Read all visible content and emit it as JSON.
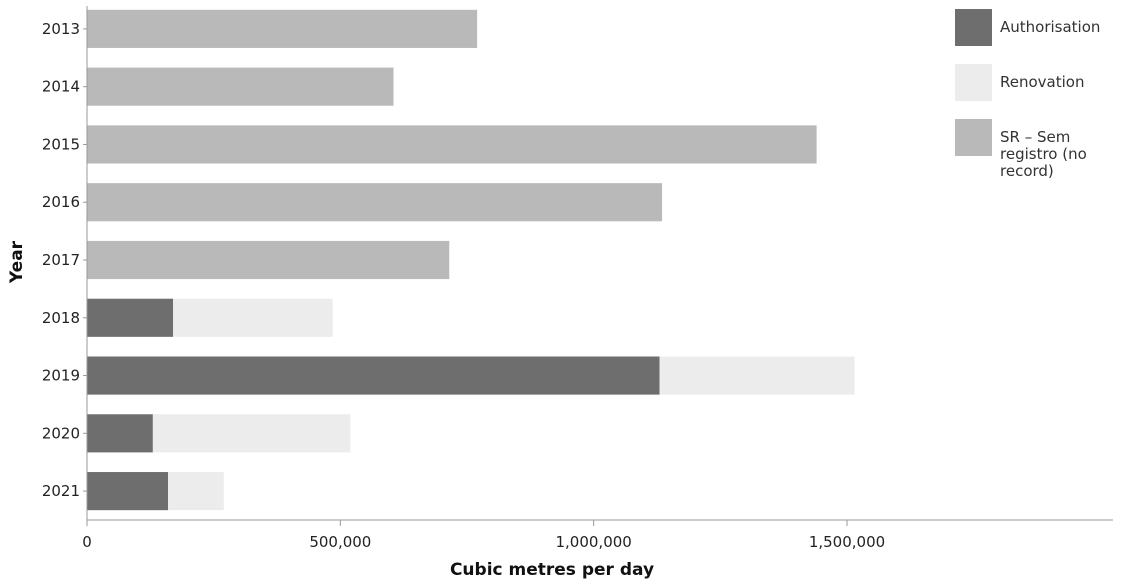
{
  "chart_data": {
    "type": "bar",
    "orientation": "horizontal",
    "stacked": true,
    "categories": [
      "2013",
      "2014",
      "2015",
      "2016",
      "2017",
      "2018",
      "2019",
      "2020",
      "2021"
    ],
    "series": [
      {
        "name": "Authorisation",
        "color": "#6e6e6e",
        "values": [
          0,
          0,
          0,
          0,
          0,
          170000,
          1130000,
          130000,
          160000
        ]
      },
      {
        "name": "Renovation",
        "color": "#ececec",
        "values": [
          0,
          0,
          0,
          0,
          0,
          315000,
          385000,
          390000,
          110000
        ]
      },
      {
        "name": "SR – Sem registro (no record)",
        "color": "#b9b9b9",
        "values": [
          770000,
          605000,
          1440000,
          1135000,
          715000,
          0,
          0,
          0,
          0
        ]
      }
    ],
    "xlabel": "Cubic metres per day",
    "ylabel": "Year",
    "xlim": [
      0,
      2025000
    ],
    "xticks": [
      0,
      500000,
      1000000,
      1500000
    ],
    "xtick_labels": [
      "0",
      "500,000",
      "1,000,000",
      "1,500,000"
    ],
    "grid": false,
    "legend_position": "top-right"
  }
}
